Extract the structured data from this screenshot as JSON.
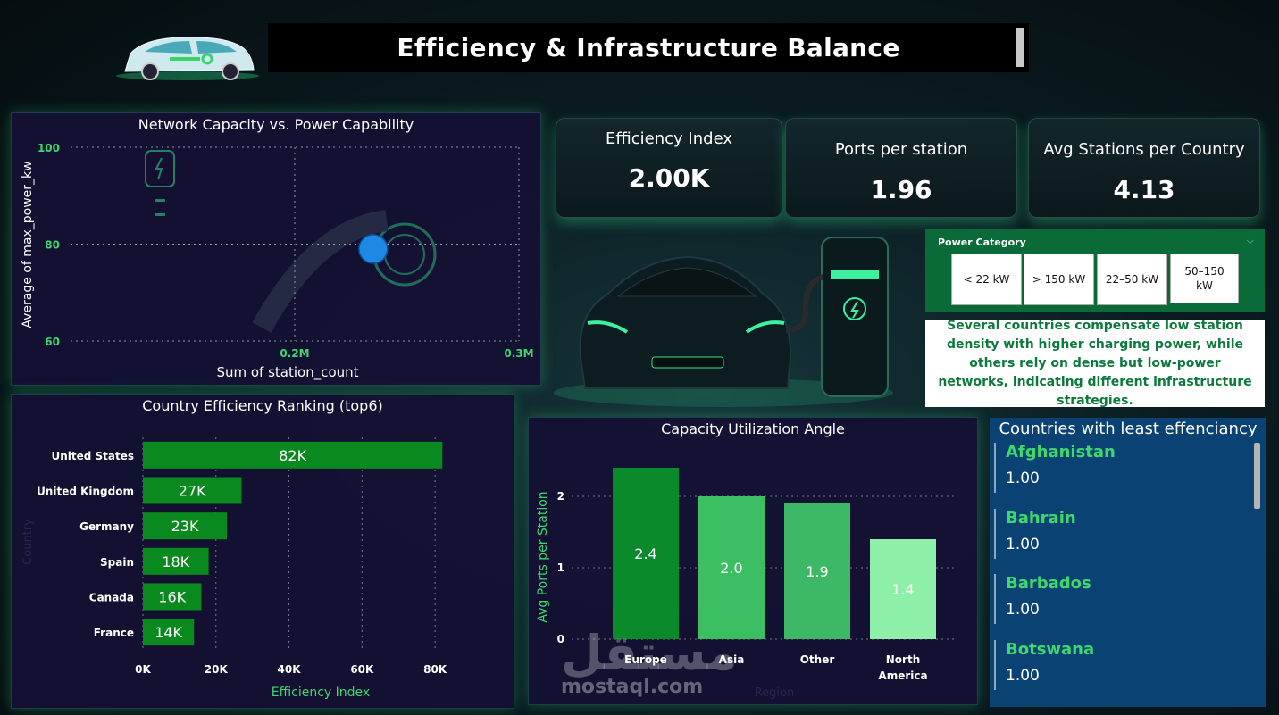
{
  "header": {
    "title": "Efficiency & Infrastructure Balance"
  },
  "colors": {
    "accent_green": "#3ed86c",
    "bar_green": "#0a8a1e",
    "panel_bg": "#151034",
    "list_bg": "#0a4274"
  },
  "kpis": [
    {
      "label": "Efficiency Index",
      "value": "2.00K"
    },
    {
      "label": "Ports per station",
      "value": "1.96"
    },
    {
      "label": "Avg Stations per Country",
      "value": "4.13"
    }
  ],
  "slicer": {
    "title": "Power Category",
    "options": [
      "< 22 kW",
      "> 150 kW",
      "22–50 kW",
      "50–150 kW"
    ]
  },
  "note": "Several countries compensate low station density with higher charging power, while others rely on dense but low-power networks, indicating different infrastructure strategies.",
  "least_efficiency": {
    "title": "Countries with least effenciancy",
    "items": [
      {
        "name": "Afghanistan",
        "value": "1.00"
      },
      {
        "name": "Bahrain",
        "value": "1.00"
      },
      {
        "name": "Barbados",
        "value": "1.00"
      },
      {
        "name": "Botswana",
        "value": "1.00"
      }
    ]
  },
  "watermark": {
    "arabic": "مستقل",
    "latin": "mostaql.com"
  },
  "chart_data": [
    {
      "type": "scatter",
      "title": "Network Capacity vs. Power Capability",
      "xlabel": "Sum of station_count",
      "ylabel": "Average of max_power_kw",
      "xlim": [
        0.1,
        0.3
      ],
      "ylim": [
        60,
        100
      ],
      "x_ticks": [
        "0.2M",
        "0.3M"
      ],
      "y_ticks": [
        "100",
        "80",
        "60"
      ],
      "points": [
        {
          "x": 0.235,
          "y": 79
        }
      ],
      "point_color": "#1e88e5",
      "grid": true
    },
    {
      "type": "bar",
      "orientation": "horizontal",
      "title": "Country Efficiency Ranking (top6)",
      "xlabel": "Efficiency Index",
      "ylabel": "Country",
      "categories": [
        "United States",
        "United Kingdom",
        "Germany",
        "Spain",
        "Canada",
        "France"
      ],
      "values": [
        82,
        27,
        23,
        18,
        16,
        14
      ],
      "labels": [
        "82K",
        "27K",
        "23K",
        "18K",
        "16K",
        "14K"
      ],
      "xlim": [
        0,
        90
      ],
      "x_ticks": [
        "0K",
        "20K",
        "40K",
        "60K",
        "80K"
      ],
      "grid": true
    },
    {
      "type": "bar",
      "title": "Capacity Utilization Angle",
      "xlabel": "Region",
      "ylabel": "Avg Ports per Station",
      "categories": [
        "Europe",
        "Asia",
        "Other",
        "North America"
      ],
      "values": [
        2.4,
        2.0,
        1.9,
        1.4
      ],
      "labels": [
        "2.4",
        "2.0",
        "1.9",
        "1.4"
      ],
      "bar_colors": [
        "#0a8a2a",
        "#3cbf62",
        "#3cb866",
        "#8ef0a8"
      ],
      "ylim": [
        0,
        2.6
      ],
      "y_ticks": [
        "0",
        "1",
        "2"
      ],
      "grid": true
    }
  ]
}
